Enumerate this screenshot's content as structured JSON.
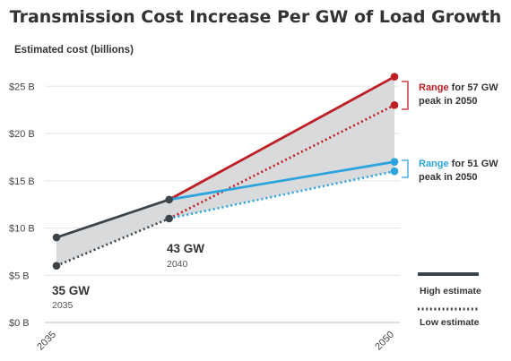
{
  "chart_data": {
    "type": "line",
    "title": "Transmission Cost Increase Per GW of Load Growth",
    "ylabel": "Estimated cost (billions)",
    "ylim": [
      0,
      28
    ],
    "y_ticks": [
      0,
      5,
      10,
      15,
      20,
      25
    ],
    "y_tick_labels": [
      "$0 B",
      "$5 B",
      "$10 B",
      "$15 B",
      "$20 B",
      "$25 B"
    ],
    "x_tick_labels": [
      "2035",
      "2050"
    ],
    "grid": true,
    "series": [
      {
        "key": "s35_high",
        "points": [
          {
            "x": 2035,
            "y": 9
          },
          {
            "x": 2040,
            "y": 13
          }
        ],
        "color": "#3d4449",
        "style": "solid"
      },
      {
        "key": "s35_low",
        "points": [
          {
            "x": 2035,
            "y": 6
          },
          {
            "x": 2040,
            "y": 11
          }
        ],
        "color": "#3d4449",
        "style": "dotted"
      },
      {
        "key": "r57_high",
        "points": [
          {
            "x": 2040,
            "y": 13
          },
          {
            "x": 2050,
            "y": 26
          }
        ],
        "color": "#bf1e24",
        "style": "solid"
      },
      {
        "key": "r57_low",
        "points": [
          {
            "x": 2040,
            "y": 11
          },
          {
            "x": 2050,
            "y": 23
          }
        ],
        "color": "#bf1e24",
        "style": "dotted"
      },
      {
        "key": "r51_high",
        "points": [
          {
            "x": 2040,
            "y": 13
          },
          {
            "x": 2050,
            "y": 17
          }
        ],
        "color": "#2ba4de",
        "style": "solid"
      },
      {
        "key": "r51_low",
        "points": [
          {
            "x": 2040,
            "y": 11
          },
          {
            "x": 2050,
            "y": 16
          }
        ],
        "color": "#2ba4de",
        "style": "dotted"
      }
    ],
    "shaded_band": [
      {
        "x": 2035,
        "y": 9
      },
      {
        "x": 2040,
        "y": 13
      },
      {
        "x": 2050,
        "y": 26
      },
      {
        "x": 2050,
        "y": 16
      },
      {
        "x": 2040,
        "y": 11
      },
      {
        "x": 2035,
        "y": 6
      }
    ],
    "band_color": "#d9dadb",
    "annotations": {
      "a35": {
        "big": "35 GW",
        "small": "2035"
      },
      "a43": {
        "big": "43 GW",
        "small": "2040"
      },
      "r57": {
        "word": "Range",
        "rest": " for 57 GW",
        "line2": "peak in 2050",
        "color": "#bf1e24"
      },
      "r51": {
        "word": "Range",
        "rest": " for 51 GW",
        "line2": "peak in 2050",
        "color": "#2ba4de"
      }
    },
    "legend": {
      "position": "bottom-right",
      "high": "High estimate",
      "low": "Low estimate",
      "color": "#3d4449"
    }
  }
}
